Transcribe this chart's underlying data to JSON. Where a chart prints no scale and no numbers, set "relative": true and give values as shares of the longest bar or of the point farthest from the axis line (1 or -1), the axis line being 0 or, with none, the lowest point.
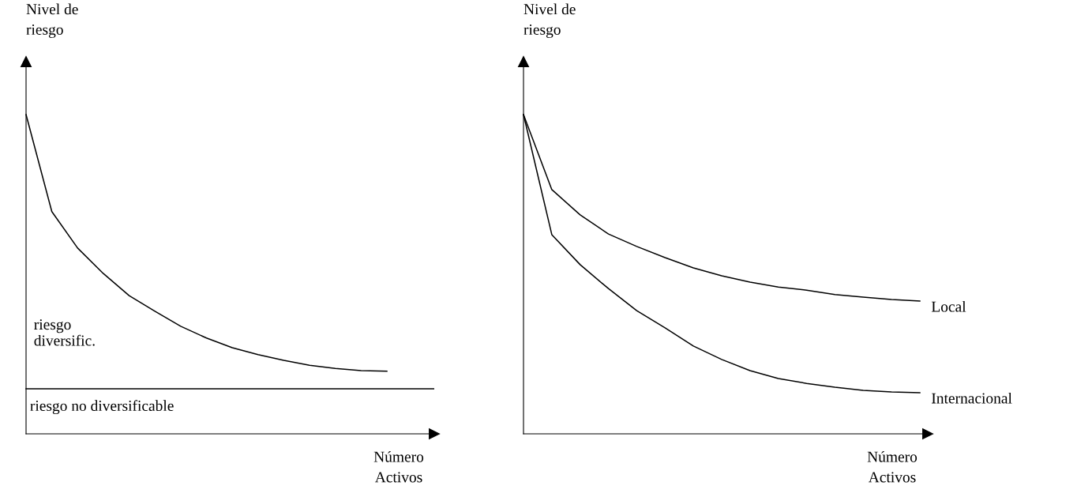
{
  "chart_data": [
    {
      "type": "line",
      "relative": true,
      "ylabel": "Nivel de\nriesgo",
      "xlabel": "Número\nActivos",
      "categories": [
        null,
        null,
        null,
        null,
        null,
        null,
        null,
        null,
        null,
        null,
        null,
        null,
        null,
        null,
        null
      ],
      "series": [
        {
          "color": "#000000",
          "values": [
            1,
            0.696,
            0.582,
            0.502,
            0.433,
            0.384,
            0.337,
            0.3,
            0.27,
            0.248,
            0.23,
            0.215,
            0.205,
            0.198,
            0.196
          ]
        }
      ],
      "ref_lines": [
        {
          "axis": "y",
          "value": 0.141,
          "label": "riesgo no diversificable",
          "color": "#000000"
        }
      ],
      "annotations": [
        "riesgo\ndiversific."
      ],
      "grid": false,
      "legend": false
    },
    {
      "type": "line",
      "relative": true,
      "ylabel": "Nivel de\nriesgo",
      "xlabel": "Número\nActivos",
      "categories": [
        null,
        null,
        null,
        null,
        null,
        null,
        null,
        null,
        null,
        null,
        null,
        null,
        null,
        null,
        null
      ],
      "series": [
        {
          "name": "Local",
          "color": "#000000",
          "values": [
            1,
            0.765,
            0.686,
            0.626,
            0.587,
            0.552,
            0.52,
            0.495,
            0.475,
            0.46,
            0.45,
            0.436,
            0.428,
            0.421,
            0.416
          ]
        },
        {
          "name": "Internacional",
          "color": "#000000",
          "values": [
            1,
            0.624,
            0.53,
            0.455,
            0.386,
            0.332,
            0.275,
            0.233,
            0.198,
            0.173,
            0.158,
            0.146,
            0.136,
            0.131,
            0.129
          ]
        }
      ],
      "grid": false,
      "legend": false
    }
  ]
}
